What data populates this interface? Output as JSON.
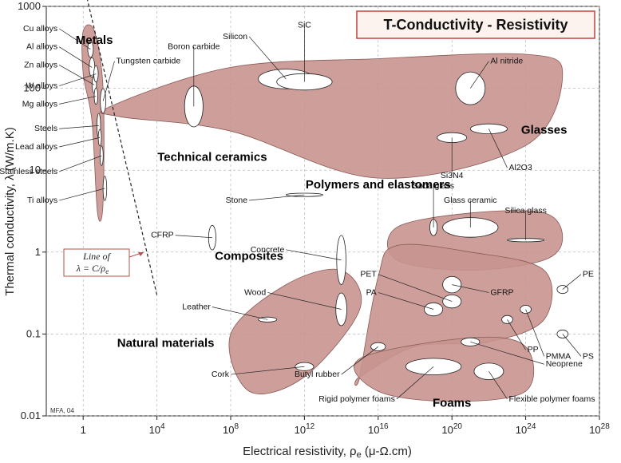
{
  "chart_data": {
    "type": "scatter",
    "title": "T-Conductivity - Resistivity",
    "xlabel": "Electrical resistivity, ρe (μ-Ω.cm)",
    "ylabel": "Thermal conductivity, λ (W/m.K)",
    "x_scale": "log",
    "y_scale": "log",
    "xlim": [
      0.01,
      1e+28
    ],
    "ylim": [
      0.01,
      1000
    ],
    "x_ticks": [
      {
        "value": 1,
        "label": "1"
      },
      {
        "value": 10000.0,
        "label": "10",
        "exp": "4"
      },
      {
        "value": 100000000.0,
        "label": "10",
        "exp": "8"
      },
      {
        "value": 1000000000000.0,
        "label": "10",
        "exp": "12"
      },
      {
        "value": 1e+16,
        "label": "10",
        "exp": "16"
      },
      {
        "value": 1e+20,
        "label": "10",
        "exp": "20"
      },
      {
        "value": 1e+24,
        "label": "10",
        "exp": "24"
      },
      {
        "value": 1e+28,
        "label": "10",
        "exp": "28"
      }
    ],
    "y_ticks": [
      {
        "value": 0.01,
        "label": "0.01"
      },
      {
        "value": 0.1,
        "label": "0.1"
      },
      {
        "value": 1,
        "label": "1"
      },
      {
        "value": 10,
        "label": "10"
      },
      {
        "value": 100,
        "label": "100"
      },
      {
        "value": 1000,
        "label": "1000"
      }
    ],
    "grid": true,
    "reference_line": {
      "label": "Line of λ = C/ρe",
      "points": [
        [
          1,
          2000
        ],
        [
          10000.0,
          0.3
        ]
      ]
    },
    "credit": "MFA, 04",
    "groups": [
      {
        "name": "Metals",
        "label_at": [
          4,
          350
        ],
        "envelope": [
          [
            1,
            500
          ],
          [
            4,
            500
          ],
          [
            12,
            100
          ],
          [
            12,
            4
          ],
          [
            6,
            3
          ],
          [
            3,
            40
          ],
          [
            1,
            150
          ]
        ]
      },
      {
        "name": "Technical ceramics",
        "label_at": [
          10000000.0,
          13
        ],
        "envelope": [
          [
            30,
            60
          ],
          [
            100000000.0,
            180
          ],
          [
            1e+16,
            230
          ],
          [
            1e+24,
            260
          ],
          [
            1e+26,
            150
          ],
          [
            1e+24,
            20
          ],
          [
            1e+16,
            8
          ],
          [
            100000000.0,
            30
          ],
          [
            100,
            45
          ]
        ]
      },
      {
        "name": "Glasses",
        "label_at": [
          1e+25,
          28
        ],
        "envelope": [
          [
            1e+17,
            2
          ],
          [
            1e+21,
            3
          ],
          [
            1e+25,
            3
          ],
          [
            1e+26,
            1.5
          ],
          [
            1e+25,
            0.8
          ],
          [
            1e+21,
            0.6
          ],
          [
            1e+17,
            0.8
          ]
        ]
      },
      {
        "name": "Polymers and elastomers",
        "label_at": [
          1e+16,
          6
        ],
        "envelope": [
          [
            1000000000000000.0,
            0.03
          ],
          [
            1e+16,
            0.5
          ],
          [
            1e+17,
            1.2
          ],
          [
            1e+21,
            1.0
          ],
          [
            1e+25,
            0.6
          ],
          [
            1e+25,
            0.15
          ],
          [
            1e+22,
            0.08
          ],
          [
            1e+18,
            0.07
          ],
          [
            1000000000000000.0,
            0.03
          ]
        ]
      },
      {
        "name": "Composites",
        "label_at": [
          1000000000.0,
          0.8
        ],
        "envelope": []
      },
      {
        "name": "Natural materials",
        "label_at": [
          30000.0,
          0.07
        ],
        "envelope": [
          [
            100000000.0,
            0.1
          ],
          [
            100000000000.0,
            0.4
          ],
          [
            100000000000000.0,
            0.6
          ],
          [
            1000000000000000.0,
            0.2
          ],
          [
            1000000000000.0,
            0.03
          ],
          [
            1000000000.0,
            0.02
          ]
        ]
      },
      {
        "name": "Foams",
        "label_at": [
          1e+20,
          0.013
        ],
        "envelope": [
          [
            1000000000000000.0,
            0.05
          ],
          [
            1e+21,
            0.09
          ],
          [
            1e+24,
            0.07
          ],
          [
            1e+24,
            0.02
          ],
          [
            1e+20,
            0.015
          ],
          [
            1e+16,
            0.02
          ]
        ]
      }
    ],
    "materials": [
      {
        "name": "Cu alloys",
        "cx": 2.5,
        "cy": 300,
        "rx": 0.15,
        "ry": 0.1,
        "label_at": [
          0.05,
          500
        ]
      },
      {
        "name": "Al alloys",
        "cx": 3,
        "cy": 180,
        "rx": 0.15,
        "ry": 0.12,
        "label_at": [
          0.05,
          300
        ]
      },
      {
        "name": "Zn alloys",
        "cx": 4,
        "cy": 110,
        "rx": 0.12,
        "ry": 0.1,
        "label_at": [
          0.05,
          180
        ]
      },
      {
        "name": "W alloys",
        "cx": 5,
        "cy": 150,
        "rx": 0.12,
        "ry": 0.1,
        "label_at": [
          0.05,
          100
        ]
      },
      {
        "name": "Mg alloys",
        "cx": 5,
        "cy": 80,
        "rx": 0.1,
        "ry": 0.1,
        "label_at": [
          0.05,
          60
        ]
      },
      {
        "name": "Tungsten carbide",
        "cx": 12,
        "cy": 70,
        "rx": 0.15,
        "ry": 0.15,
        "label_at": [
          50,
          200
        ]
      },
      {
        "name": "Steels",
        "cx": 7,
        "cy": 35,
        "rx": 0.1,
        "ry": 0.15,
        "label_at": [
          0.05,
          30
        ]
      },
      {
        "name": "Lead alloys",
        "cx": 8,
        "cy": 25,
        "rx": 0.08,
        "ry": 0.1,
        "label_at": [
          0.05,
          18
        ]
      },
      {
        "name": "Stainless steels",
        "cx": 10,
        "cy": 15,
        "rx": 0.08,
        "ry": 0.12,
        "label_at": [
          0.05,
          9
        ]
      },
      {
        "name": "Ti alloys",
        "cx": 15,
        "cy": 6,
        "rx": 0.1,
        "ry": 0.15,
        "label_at": [
          0.05,
          4
        ]
      },
      {
        "name": "Boron carbide",
        "cx": 1000000.0,
        "cy": 60,
        "rx": 0.5,
        "ry": 0.25,
        "label_at": [
          1000000.0,
          300
        ]
      },
      {
        "name": "Silicon",
        "cx": 100000000000.0,
        "cy": 130,
        "rx": 1.5,
        "ry": 0.12,
        "label_at": [
          1000000000.0,
          400
        ]
      },
      {
        "name": "SiC",
        "cx": 1000000000000.0,
        "cy": 120,
        "rx": 1.5,
        "ry": 0.1,
        "label_at": [
          1000000000000.0,
          550
        ]
      },
      {
        "name": "Al nitride",
        "cx": 1e+21,
        "cy": 100,
        "rx": 0.8,
        "ry": 0.2,
        "label_at": [
          1e+22,
          200
        ]
      },
      {
        "name": "Al2O3",
        "cx": 1e+22,
        "cy": 32,
        "rx": 1.0,
        "ry": 0.06,
        "label_at": [
          1e+23,
          10
        ]
      },
      {
        "name": "Si3N4",
        "cx": 1e+20,
        "cy": 25,
        "rx": 0.8,
        "ry": 0.06,
        "label_at": [
          1e+20,
          8
        ]
      },
      {
        "name": "Stone",
        "cx": 1000000000000.0,
        "cy": 5,
        "rx": 1.0,
        "ry": 0.02,
        "label_at": [
          1000000000.0,
          4
        ]
      },
      {
        "name": "Soda glass",
        "cx": 1e+19,
        "cy": 2,
        "rx": 0.2,
        "ry": 0.1,
        "label_at": [
          1e+19,
          6
        ]
      },
      {
        "name": "Glass ceramic",
        "cx": 1e+21,
        "cy": 2,
        "rx": 1.5,
        "ry": 0.12,
        "label_at": [
          1e+21,
          4
        ]
      },
      {
        "name": "Silica glass",
        "cx": 1e+24,
        "cy": 1.4,
        "rx": 1.0,
        "ry": 0.02,
        "label_at": [
          1e+24,
          3
        ]
      },
      {
        "name": "CFRP",
        "cx": 10000000.0,
        "cy": 1.5,
        "rx": 0.2,
        "ry": 0.15,
        "label_at": [
          100000.0,
          1.5
        ]
      },
      {
        "name": "Concrete",
        "cx": 100000000000000.0,
        "cy": 0.8,
        "rx": 0.25,
        "ry": 0.3,
        "label_at": [
          100000000000.0,
          1
        ]
      },
      {
        "name": "PET",
        "cx": 1e+20,
        "cy": 0.25,
        "rx": 0.5,
        "ry": 0.08,
        "label_at": [
          1e+16,
          0.5
        ]
      },
      {
        "name": "PA",
        "cx": 1e+19,
        "cy": 0.2,
        "rx": 0.5,
        "ry": 0.08,
        "label_at": [
          1e+16,
          0.3
        ]
      },
      {
        "name": "GFRP",
        "cx": 1e+20,
        "cy": 0.4,
        "rx": 0.5,
        "ry": 0.1,
        "label_at": [
          1e+22,
          0.3
        ]
      },
      {
        "name": "PE",
        "cx": 1e+26,
        "cy": 0.35,
        "rx": 0.3,
        "ry": 0.05,
        "label_at": [
          1e+27,
          0.5
        ]
      },
      {
        "name": "PP",
        "cx": 1e+23,
        "cy": 0.15,
        "rx": 0.3,
        "ry": 0.05,
        "label_at": [
          1e+24,
          0.06
        ]
      },
      {
        "name": "PMMA",
        "cx": 1e+24,
        "cy": 0.2,
        "rx": 0.3,
        "ry": 0.05,
        "label_at": [
          1e+25,
          0.05
        ]
      },
      {
        "name": "PS",
        "cx": 1e+26,
        "cy": 0.1,
        "rx": 0.3,
        "ry": 0.05,
        "label_at": [
          1e+27,
          0.05
        ]
      },
      {
        "name": "Neoprene",
        "cx": 1e+21,
        "cy": 0.08,
        "rx": 0.5,
        "ry": 0.05,
        "label_at": [
          1e+25,
          0.04
        ]
      },
      {
        "name": "Wood",
        "cx": 100000000000000.0,
        "cy": 0.2,
        "rx": 0.3,
        "ry": 0.2,
        "label_at": [
          10000000000.0,
          0.3
        ]
      },
      {
        "name": "Leather",
        "cx": 10000000000.0,
        "cy": 0.15,
        "rx": 0.5,
        "ry": 0.03,
        "label_at": [
          10000000.0,
          0.2
        ]
      },
      {
        "name": "Cork",
        "cx": 1000000000000.0,
        "cy": 0.04,
        "rx": 0.5,
        "ry": 0.05,
        "label_at": [
          100000000.0,
          0.03
        ]
      },
      {
        "name": "Butyl rubber",
        "cx": 1e+16,
        "cy": 0.07,
        "rx": 0.4,
        "ry": 0.05,
        "label_at": [
          100000000000000.0,
          0.03
        ]
      },
      {
        "name": "Rigid polymer foams",
        "cx": 1e+19,
        "cy": 0.04,
        "rx": 1.5,
        "ry": 0.1,
        "label_at": [
          1e+17,
          0.015
        ]
      },
      {
        "name": "Flexible polymer foams",
        "cx": 1e+22,
        "cy": 0.035,
        "rx": 0.8,
        "ry": 0.1,
        "label_at": [
          1e+23,
          0.015
        ]
      }
    ]
  },
  "texts": {
    "title": "T-Conductivity - Resistivity",
    "xlabel_main": "Electrical resistivity, ρ",
    "xlabel_sub": "e",
    "xlabel_units": " (μ-Ω.cm)",
    "ylabel": "Thermal conductivity, λ (W/m.K)",
    "line_note_1": "Line of",
    "line_note_2": "λ = C/ρ",
    "line_note_sub": "e",
    "credit": "MFA, 04"
  },
  "style": {
    "envelope_fill": "#c8938f",
    "envelope_stroke": "#8a5a55",
    "bubble_fill": "#ffffff",
    "title_border": "#c0443a",
    "title_bg": "#fdf3ee",
    "note_border": "#b8504a",
    "grid_color": "#aaaaaa"
  }
}
